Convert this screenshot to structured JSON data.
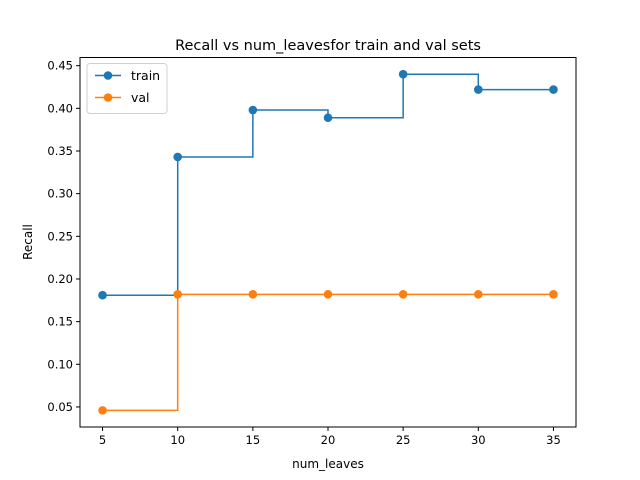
{
  "chart_data": {
    "type": "line",
    "drawstyle": "steps-post",
    "title": "Recall vs num_leavesfor train and val sets",
    "xlabel": "num_leaves",
    "ylabel": "Recall",
    "x": [
      5,
      10,
      15,
      20,
      25,
      30,
      35
    ],
    "xlim": [
      3.5,
      36.5
    ],
    "ylim": [
      0.0265,
      0.4596
    ],
    "xticks": [
      5,
      10,
      15,
      20,
      25,
      30,
      35
    ],
    "xtick_labels": [
      "5",
      "10",
      "15",
      "20",
      "25",
      "30",
      "35"
    ],
    "yticks": [
      0.05,
      0.1,
      0.15,
      0.2,
      0.25,
      0.3,
      0.35,
      0.4,
      0.45
    ],
    "ytick_labels": [
      "0.05",
      "0.10",
      "0.15",
      "0.20",
      "0.25",
      "0.30",
      "0.35",
      "0.40",
      "0.45"
    ],
    "grid": false,
    "legend_position": "top-left",
    "series": [
      {
        "name": "train",
        "color": "#1f77b4",
        "marker": "circle",
        "values": [
          0.181,
          0.343,
          0.398,
          0.389,
          0.44,
          0.422,
          0.422
        ]
      },
      {
        "name": "val",
        "color": "#ff7f0e",
        "marker": "circle",
        "values": [
          0.046,
          0.182,
          0.182,
          0.182,
          0.182,
          0.182,
          0.182
        ]
      }
    ]
  }
}
